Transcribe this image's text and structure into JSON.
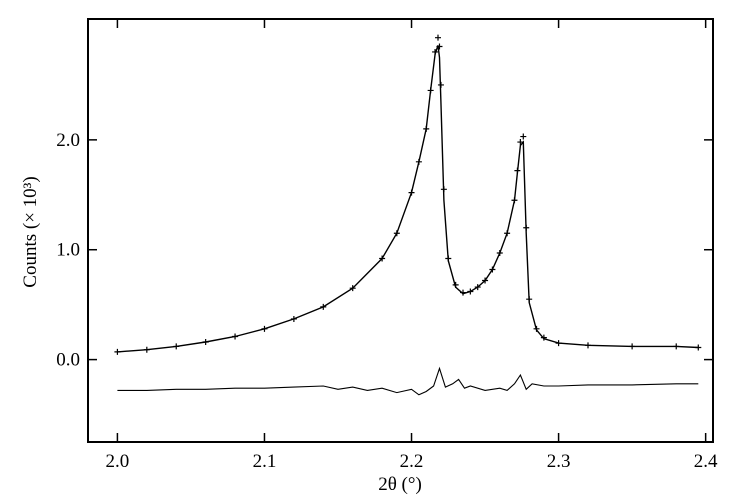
{
  "chart_data": {
    "type": "line",
    "title": "",
    "xlabel": "2θ (°)",
    "ylabel": "Counts (× 10³)",
    "xlim": [
      1.98,
      2.405
    ],
    "ylim": [
      -0.75,
      3.1
    ],
    "xticks": [
      2.0,
      2.1,
      2.2,
      2.3,
      2.4
    ],
    "xtick_labels": [
      "2.0",
      "2.1",
      "2.2",
      "2.3",
      "2.4"
    ],
    "yticks": [
      0.0,
      1.0,
      2.0
    ],
    "ytick_labels": [
      "0.0",
      "1.0",
      "2.0"
    ],
    "grid": false,
    "legend": false,
    "series": [
      {
        "style": "observed-markers",
        "x": [
          2.0,
          2.02,
          2.04,
          2.06,
          2.08,
          2.1,
          2.12,
          2.14,
          2.16,
          2.18,
          2.19,
          2.2,
          2.205,
          2.21,
          2.213,
          2.216,
          2.218,
          2.219,
          2.22,
          2.222,
          2.225,
          2.23,
          2.235,
          2.24,
          2.245,
          2.25,
          2.255,
          2.26,
          2.265,
          2.27,
          2.272,
          2.274,
          2.276,
          2.278,
          2.28,
          2.285,
          2.29,
          2.3,
          2.32,
          2.35,
          2.38,
          2.395
        ],
        "y": [
          0.07,
          0.09,
          0.12,
          0.16,
          0.21,
          0.28,
          0.37,
          0.48,
          0.65,
          0.92,
          1.15,
          1.52,
          1.8,
          2.1,
          2.45,
          2.8,
          2.93,
          2.85,
          2.5,
          1.55,
          0.92,
          0.68,
          0.61,
          0.62,
          0.66,
          0.72,
          0.82,
          0.97,
          1.15,
          1.45,
          1.72,
          1.98,
          2.03,
          1.2,
          0.55,
          0.28,
          0.2,
          0.15,
          0.13,
          0.12,
          0.12,
          0.11
        ]
      },
      {
        "style": "calculated-line",
        "x": [
          2.0,
          2.02,
          2.04,
          2.06,
          2.08,
          2.1,
          2.12,
          2.14,
          2.16,
          2.18,
          2.19,
          2.2,
          2.205,
          2.21,
          2.213,
          2.216,
          2.218,
          2.219,
          2.22,
          2.222,
          2.225,
          2.23,
          2.235,
          2.24,
          2.245,
          2.25,
          2.255,
          2.26,
          2.265,
          2.27,
          2.272,
          2.274,
          2.276,
          2.278,
          2.28,
          2.285,
          2.29,
          2.3,
          2.32,
          2.35,
          2.38,
          2.395
        ],
        "y": [
          0.07,
          0.09,
          0.12,
          0.16,
          0.21,
          0.28,
          0.37,
          0.48,
          0.65,
          0.92,
          1.15,
          1.52,
          1.8,
          2.1,
          2.45,
          2.78,
          2.86,
          2.75,
          2.35,
          1.45,
          0.9,
          0.66,
          0.6,
          0.62,
          0.66,
          0.72,
          0.82,
          0.97,
          1.15,
          1.45,
          1.7,
          1.95,
          1.98,
          1.15,
          0.52,
          0.27,
          0.19,
          0.15,
          0.13,
          0.12,
          0.12,
          0.11
        ]
      },
      {
        "style": "difference-line",
        "x": [
          2.0,
          2.02,
          2.04,
          2.06,
          2.08,
          2.1,
          2.12,
          2.14,
          2.15,
          2.16,
          2.17,
          2.18,
          2.19,
          2.2,
          2.205,
          2.21,
          2.215,
          2.219,
          2.223,
          2.228,
          2.232,
          2.236,
          2.24,
          2.25,
          2.26,
          2.265,
          2.27,
          2.274,
          2.278,
          2.282,
          2.29,
          2.3,
          2.32,
          2.35,
          2.38,
          2.395
        ],
        "y": [
          -0.28,
          -0.28,
          -0.27,
          -0.27,
          -0.26,
          -0.26,
          -0.25,
          -0.24,
          -0.27,
          -0.25,
          -0.28,
          -0.26,
          -0.3,
          -0.27,
          -0.32,
          -0.29,
          -0.24,
          -0.08,
          -0.25,
          -0.22,
          -0.18,
          -0.26,
          -0.24,
          -0.28,
          -0.26,
          -0.28,
          -0.22,
          -0.14,
          -0.27,
          -0.22,
          -0.24,
          -0.24,
          -0.23,
          -0.23,
          -0.22,
          -0.22
        ]
      }
    ]
  }
}
